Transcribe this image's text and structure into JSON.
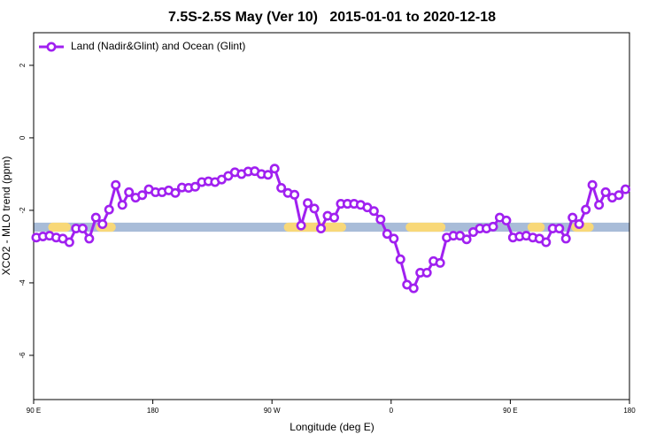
{
  "chart_data": {
    "type": "line",
    "title": "7.5S-2.5S May (Ver 10)   2015-01-01 to 2020-12-18",
    "x_label": "Longitude (deg E)",
    "y_label": "XCO2 - MLO trend (ppm)",
    "xlim": [
      90,
      540
    ],
    "ylim": [
      -7.22,
      2.9
    ],
    "xticks": [
      {
        "value": 90,
        "label": "90 E"
      },
      {
        "value": 180,
        "label": "180"
      },
      {
        "value": 270,
        "label": "90 W"
      },
      {
        "value": 360,
        "label": "0"
      },
      {
        "value": 450,
        "label": "90 E"
      },
      {
        "value": 540,
        "label": "180"
      }
    ],
    "yticks": [
      -6,
      -4,
      -2,
      0,
      2
    ],
    "legend_position": "top-left",
    "land_band": {
      "y": [
        -2.59,
        -2.34
      ],
      "ocean_color": "#a8bcd8",
      "land_color": "#f8d878",
      "land_ranges": [
        [
          101,
          118
        ],
        [
          137,
          152
        ],
        [
          279,
          326
        ],
        [
          371,
          401
        ],
        [
          463,
          476
        ],
        [
          496,
          513
        ]
      ]
    },
    "x": [
      92,
      97,
      102,
      107,
      112,
      117,
      122,
      127,
      132,
      137,
      142,
      147,
      152,
      157,
      162,
      167,
      172,
      177,
      182,
      187,
      192,
      197,
      202,
      207,
      212,
      217,
      222,
      227,
      232,
      237,
      242,
      247,
      252,
      257,
      262,
      267,
      272,
      277,
      282,
      287,
      292,
      297,
      302,
      307,
      312,
      317,
      322,
      327,
      332,
      337,
      342,
      347,
      352,
      357,
      362,
      367,
      372,
      377,
      382,
      387,
      392,
      397,
      402,
      407,
      412,
      417,
      422,
      427,
      432,
      437,
      442,
      447,
      452,
      457,
      462,
      467,
      472,
      477,
      482,
      487,
      492,
      497,
      502,
      507,
      512,
      517,
      522,
      527,
      532,
      537
    ],
    "series": [
      {
        "name": "Land (Nadir&Glint) and Ocean (Glint)",
        "color": "#a020f0",
        "values": [
          -2.75,
          -2.72,
          -2.7,
          -2.75,
          -2.78,
          -2.88,
          -2.5,
          -2.5,
          -2.78,
          -2.2,
          -2.38,
          -1.98,
          -1.3,
          -1.85,
          -1.5,
          -1.65,
          -1.58,
          -1.42,
          -1.5,
          -1.5,
          -1.45,
          -1.52,
          -1.37,
          -1.38,
          -1.35,
          -1.22,
          -1.2,
          -1.22,
          -1.15,
          -1.05,
          -0.95,
          -1.0,
          -0.93,
          -0.92,
          -1.0,
          -1.02,
          -0.85,
          -1.38,
          -1.52,
          -1.57,
          -2.42,
          -1.8,
          -1.95,
          -2.5,
          -2.15,
          -2.2,
          -1.82,
          -1.82,
          -1.82,
          -1.85,
          -1.92,
          -2.02,
          -2.25,
          -2.65,
          -2.78,
          -3.35,
          -4.05,
          -4.15,
          -3.72,
          -3.72,
          -3.4,
          -3.45,
          -2.75,
          -2.7,
          -2.7,
          -2.8,
          -2.6,
          -2.5,
          -2.5,
          -2.45,
          -2.2,
          -2.28,
          -2.75,
          -2.72,
          -2.7,
          -2.75,
          -2.78,
          -2.88,
          -2.5,
          -2.5,
          -2.78,
          -2.2,
          -2.38,
          -1.98,
          -1.3,
          -1.85,
          -1.5,
          -1.65,
          -1.58,
          -1.42
        ]
      }
    ]
  }
}
